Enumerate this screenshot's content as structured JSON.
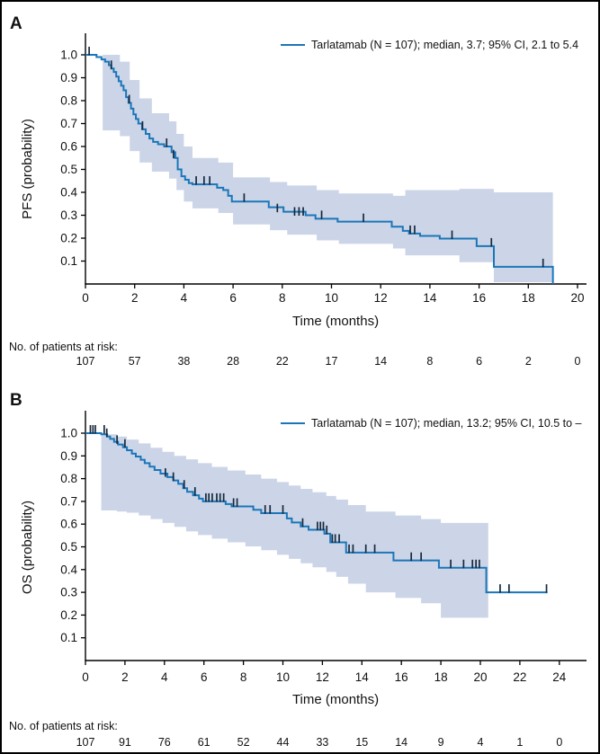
{
  "figure": {
    "background": "#ffffff",
    "border_color": "#000000"
  },
  "chart_data": [
    {
      "type": "line",
      "subtype": "kaplan-meier-step",
      "panel_label": "A",
      "series_label": "Tarlatamab (N = 107); median, 3.7; 95% CI, 2.1 to 5.4",
      "xlabel": "Time (months)",
      "ylabel": "PFS (probability)",
      "xlim": [
        0,
        20
      ],
      "ylim": [
        0,
        1.0
      ],
      "xticks": [
        0,
        2,
        4,
        6,
        8,
        10,
        12,
        14,
        16,
        18,
        20
      ],
      "ytick_labels": [
        "1.0",
        "0.9",
        "0.8",
        "0.7",
        "0.6",
        "0.5",
        "0.4",
        "0.3",
        "0.2",
        "0.1"
      ],
      "line_color": "#1b76b9",
      "band_color": "#ccd5e7",
      "censor_color": "#17293f",
      "legend_position": "top-right",
      "grid": false,
      "steps": [
        [
          0,
          1.0
        ],
        [
          0.45,
          0.99
        ],
        [
          0.65,
          0.98
        ],
        [
          0.8,
          0.97
        ],
        [
          0.95,
          0.955
        ],
        [
          1.05,
          0.94
        ],
        [
          1.15,
          0.925
        ],
        [
          1.25,
          0.905
        ],
        [
          1.35,
          0.885
        ],
        [
          1.45,
          0.865
        ],
        [
          1.55,
          0.845
        ],
        [
          1.65,
          0.815
        ],
        [
          1.75,
          0.79
        ],
        [
          1.85,
          0.765
        ],
        [
          1.95,
          0.74
        ],
        [
          2.05,
          0.72
        ],
        [
          2.15,
          0.7
        ],
        [
          2.3,
          0.675
        ],
        [
          2.45,
          0.655
        ],
        [
          2.6,
          0.635
        ],
        [
          2.75,
          0.62
        ],
        [
          2.95,
          0.61
        ],
        [
          3.2,
          0.6
        ],
        [
          3.5,
          0.575
        ],
        [
          3.65,
          0.55
        ],
        [
          3.75,
          0.5
        ],
        [
          3.9,
          0.47
        ],
        [
          4.05,
          0.455
        ],
        [
          4.2,
          0.44
        ],
        [
          4.35,
          0.435
        ],
        [
          5.35,
          0.42
        ],
        [
          5.6,
          0.41
        ],
        [
          5.8,
          0.385
        ],
        [
          5.95,
          0.36
        ],
        [
          7.45,
          0.335
        ],
        [
          8.05,
          0.315
        ],
        [
          8.95,
          0.3
        ],
        [
          9.35,
          0.285
        ],
        [
          10.25,
          0.272
        ],
        [
          12.45,
          0.25
        ],
        [
          12.9,
          0.232
        ],
        [
          13.15,
          0.22
        ],
        [
          13.6,
          0.21
        ],
        [
          14.4,
          0.198
        ],
        [
          15.9,
          0.165
        ],
        [
          16.6,
          0.075
        ],
        [
          19.0,
          0.075
        ],
        [
          19.0,
          0.0
        ]
      ],
      "censors": [
        [
          0.15,
          1.0
        ],
        [
          1.05,
          0.94
        ],
        [
          1.78,
          0.79
        ],
        [
          2.32,
          0.675
        ],
        [
          3.3,
          0.6
        ],
        [
          3.58,
          0.55
        ],
        [
          4.5,
          0.435
        ],
        [
          4.82,
          0.435
        ],
        [
          5.05,
          0.435
        ],
        [
          6.45,
          0.36
        ],
        [
          7.8,
          0.315
        ],
        [
          8.5,
          0.3
        ],
        [
          8.68,
          0.3
        ],
        [
          8.85,
          0.3
        ],
        [
          9.6,
          0.285
        ],
        [
          11.3,
          0.272
        ],
        [
          13.2,
          0.22
        ],
        [
          13.38,
          0.22
        ],
        [
          14.9,
          0.198
        ],
        [
          16.5,
          0.165
        ],
        [
          18.6,
          0.075
        ]
      ],
      "ci_band": [
        [
          0.7,
          0.67,
          1.0
        ],
        [
          1.4,
          0.645,
          0.97
        ],
        [
          1.8,
          0.58,
          0.89
        ],
        [
          2.2,
          0.53,
          0.81
        ],
        [
          2.7,
          0.49,
          0.745
        ],
        [
          3.4,
          0.46,
          0.71
        ],
        [
          3.7,
          0.41,
          0.655
        ],
        [
          4.0,
          0.36,
          0.6
        ],
        [
          4.35,
          0.33,
          0.55
        ],
        [
          5.4,
          0.31,
          0.53
        ],
        [
          6.0,
          0.26,
          0.465
        ],
        [
          7.5,
          0.235,
          0.445
        ],
        [
          8.2,
          0.215,
          0.43
        ],
        [
          9.4,
          0.19,
          0.41
        ],
        [
          10.3,
          0.175,
          0.395
        ],
        [
          12.5,
          0.155,
          0.385
        ],
        [
          13.0,
          0.125,
          0.41
        ],
        [
          15.2,
          0.095,
          0.415
        ],
        [
          16.6,
          0.008,
          0.4
        ],
        [
          19.0,
          0.008,
          0.4
        ]
      ],
      "at_risk": {
        "label": "No. of patients at risk:",
        "times": [
          0,
          2,
          4,
          6,
          8,
          10,
          12,
          14,
          16,
          18,
          20
        ],
        "counts": [
          107,
          57,
          38,
          28,
          22,
          17,
          14,
          8,
          6,
          2,
          0
        ]
      }
    },
    {
      "type": "line",
      "subtype": "kaplan-meier-step",
      "panel_label": "B",
      "series_label": "Tarlatamab (N = 107); median, 13.2; 95% CI, 10.5 to –",
      "xlabel": "Time (months)",
      "ylabel": "OS (probability)",
      "xlim": [
        0,
        24
      ],
      "ylim": [
        0,
        1.0
      ],
      "xticks": [
        0,
        2,
        4,
        6,
        8,
        10,
        12,
        14,
        16,
        18,
        20,
        22,
        24
      ],
      "ytick_labels": [
        "1.0",
        "0.9",
        "0.8",
        "0.7",
        "0.6",
        "0.5",
        "0.4",
        "0.3",
        "0.2",
        "0.1"
      ],
      "line_color": "#1b76b9",
      "band_color": "#ccd5e7",
      "censor_color": "#17293f",
      "legend_position": "top-right",
      "grid": false,
      "steps": [
        [
          0,
          1.0
        ],
        [
          0.8,
          0.995
        ],
        [
          1.1,
          0.985
        ],
        [
          1.25,
          0.975
        ],
        [
          1.45,
          0.962
        ],
        [
          1.65,
          0.95
        ],
        [
          1.9,
          0.938
        ],
        [
          2.1,
          0.925
        ],
        [
          2.35,
          0.91
        ],
        [
          2.55,
          0.897
        ],
        [
          2.8,
          0.883
        ],
        [
          3.0,
          0.868
        ],
        [
          3.25,
          0.853
        ],
        [
          3.5,
          0.838
        ],
        [
          3.8,
          0.822
        ],
        [
          4.15,
          0.807
        ],
        [
          4.45,
          0.792
        ],
        [
          4.7,
          0.777
        ],
        [
          4.95,
          0.758
        ],
        [
          5.15,
          0.742
        ],
        [
          5.45,
          0.727
        ],
        [
          5.75,
          0.712
        ],
        [
          5.95,
          0.7
        ],
        [
          7.1,
          0.688
        ],
        [
          7.4,
          0.678
        ],
        [
          8.5,
          0.663
        ],
        [
          8.9,
          0.648
        ],
        [
          10.2,
          0.625
        ],
        [
          10.45,
          0.607
        ],
        [
          10.9,
          0.59
        ],
        [
          11.3,
          0.575
        ],
        [
          12.1,
          0.558
        ],
        [
          12.4,
          0.52
        ],
        [
          13.2,
          0.475
        ],
        [
          15.6,
          0.44
        ],
        [
          17.9,
          0.408
        ],
        [
          20.3,
          0.3
        ],
        [
          23.4,
          0.3
        ]
      ],
      "censors": [
        [
          0.25,
          1.0
        ],
        [
          0.38,
          1.0
        ],
        [
          0.5,
          1.0
        ],
        [
          0.95,
          1.0
        ],
        [
          1.08,
          0.985
        ],
        [
          1.6,
          0.955
        ],
        [
          2.0,
          0.938
        ],
        [
          4.05,
          0.81
        ],
        [
          4.45,
          0.792
        ],
        [
          5.0,
          0.758
        ],
        [
          5.55,
          0.727
        ],
        [
          6.1,
          0.7
        ],
        [
          6.25,
          0.7
        ],
        [
          6.42,
          0.7
        ],
        [
          6.65,
          0.7
        ],
        [
          6.82,
          0.7
        ],
        [
          7.0,
          0.7
        ],
        [
          7.5,
          0.678
        ],
        [
          7.68,
          0.678
        ],
        [
          9.1,
          0.648
        ],
        [
          9.35,
          0.648
        ],
        [
          10.0,
          0.648
        ],
        [
          11.0,
          0.59
        ],
        [
          11.75,
          0.575
        ],
        [
          11.9,
          0.575
        ],
        [
          12.05,
          0.575
        ],
        [
          12.22,
          0.558
        ],
        [
          12.5,
          0.52
        ],
        [
          12.65,
          0.52
        ],
        [
          12.85,
          0.52
        ],
        [
          13.35,
          0.475
        ],
        [
          13.55,
          0.475
        ],
        [
          14.2,
          0.475
        ],
        [
          14.65,
          0.475
        ],
        [
          16.5,
          0.44
        ],
        [
          17.0,
          0.44
        ],
        [
          18.5,
          0.408
        ],
        [
          19.15,
          0.408
        ],
        [
          19.6,
          0.408
        ],
        [
          19.78,
          0.408
        ],
        [
          19.95,
          0.408
        ],
        [
          21.0,
          0.3
        ],
        [
          21.45,
          0.3
        ],
        [
          23.35,
          0.3
        ]
      ],
      "ci_band": [
        [
          0.8,
          0.66,
          0.995
        ],
        [
          1.6,
          0.655,
          0.985
        ],
        [
          2.1,
          0.65,
          0.972
        ],
        [
          2.7,
          0.638,
          0.955
        ],
        [
          3.3,
          0.622,
          0.936
        ],
        [
          3.9,
          0.605,
          0.918
        ],
        [
          4.5,
          0.588,
          0.9
        ],
        [
          5.1,
          0.568,
          0.885
        ],
        [
          5.7,
          0.552,
          0.868
        ],
        [
          6.4,
          0.536,
          0.852
        ],
        [
          7.2,
          0.52,
          0.836
        ],
        [
          8.1,
          0.502,
          0.818
        ],
        [
          8.9,
          0.485,
          0.8
        ],
        [
          9.7,
          0.465,
          0.785
        ],
        [
          10.3,
          0.447,
          0.77
        ],
        [
          10.9,
          0.428,
          0.755
        ],
        [
          11.5,
          0.41,
          0.74
        ],
        [
          12.2,
          0.39,
          0.724
        ],
        [
          12.7,
          0.368,
          0.708
        ],
        [
          13.3,
          0.338,
          0.684
        ],
        [
          14.2,
          0.3,
          0.655
        ],
        [
          15.7,
          0.275,
          0.638
        ],
        [
          17.0,
          0.252,
          0.622
        ],
        [
          18.0,
          0.188,
          0.605
        ],
        [
          20.4,
          0.188,
          0.605
        ]
      ],
      "at_risk": {
        "label": "No. of patients at risk:",
        "times": [
          0,
          2,
          4,
          6,
          8,
          10,
          12,
          14,
          16,
          18,
          20,
          22,
          24
        ],
        "counts": [
          107,
          91,
          76,
          61,
          52,
          44,
          33,
          15,
          14,
          9,
          4,
          1,
          0
        ]
      }
    }
  ]
}
